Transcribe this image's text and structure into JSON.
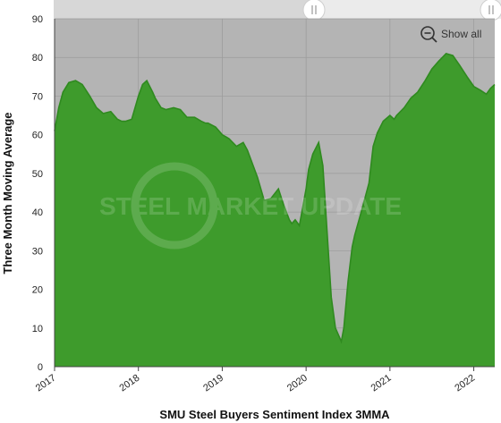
{
  "chart_data": {
    "type": "area",
    "title": "",
    "xlabel": "SMU Steel Buyers Sentiment Index 3MMA",
    "ylabel": "Three Month Moving Average",
    "xlim": [
      2017.0,
      2022.25
    ],
    "ylim": [
      0,
      90
    ],
    "x_ticks": [
      2017,
      2018,
      2019,
      2020,
      2021,
      2022
    ],
    "x_tick_labels": [
      "2017",
      "2018",
      "2019",
      "2020",
      "2021",
      "2022"
    ],
    "y_ticks": [
      0,
      10,
      20,
      30,
      40,
      50,
      60,
      70,
      80,
      90
    ],
    "y_tick_labels": [
      "0",
      "10",
      "20",
      "30",
      "40",
      "50",
      "60",
      "70",
      "80",
      "90"
    ],
    "grid": true,
    "fill_color": "#3e9b2c",
    "line_color": "#2f8a1f",
    "plot_background": "#b4b4b4",
    "series": [
      {
        "x": [
          2017.0,
          2017.05,
          2017.1,
          2017.17,
          2017.25,
          2017.33,
          2017.42,
          2017.5,
          2017.58,
          2017.67,
          2017.75,
          2017.8,
          2017.85,
          2017.92,
          2018.0,
          2018.05,
          2018.1,
          2018.17,
          2018.2,
          2018.27,
          2018.33,
          2018.42,
          2018.5,
          2018.58,
          2018.67,
          2018.75,
          2018.8,
          2018.83,
          2018.92,
          2019.0,
          2019.08,
          2019.17,
          2019.25,
          2019.3,
          2019.42,
          2019.5,
          2019.58,
          2019.67,
          2019.73,
          2019.8,
          2019.83,
          2019.87,
          2019.92,
          2020.0,
          2020.03,
          2020.08,
          2020.15,
          2020.2,
          2020.25,
          2020.3,
          2020.35,
          2020.42,
          2020.45,
          2020.5,
          2020.55,
          2020.58,
          2020.67,
          2020.75,
          2020.8,
          2020.85,
          2020.92,
          2021.0,
          2021.05,
          2021.08,
          2021.17,
          2021.25,
          2021.33,
          2021.42,
          2021.5,
          2021.58,
          2021.67,
          2021.75,
          2021.83,
          2021.92,
          2022.0,
          2022.08,
          2022.15,
          2022.2,
          2022.25
        ],
        "y": [
          61,
          67,
          71,
          73.5,
          74,
          73,
          70,
          67,
          65.5,
          66,
          64,
          63.5,
          63.5,
          64,
          70,
          73,
          74,
          71,
          69.5,
          67,
          66.5,
          67,
          66.5,
          64.5,
          64.5,
          63.5,
          63,
          63,
          62,
          60,
          59,
          57,
          58,
          56,
          49,
          43,
          43.5,
          46,
          42,
          38,
          37,
          38,
          36.5,
          46,
          51,
          55,
          58,
          52,
          35,
          18,
          10,
          6.5,
          10,
          22,
          31,
          34,
          41,
          47.5,
          57,
          60.5,
          63.5,
          65,
          64,
          65,
          67,
          69.5,
          71,
          74,
          77,
          79,
          81,
          80.5,
          78,
          75,
          72.5,
          71.5,
          70.5,
          72,
          73
        ]
      }
    ],
    "watermark": "STEEL MARKET UPDATE",
    "zoom_button_label": "Show all"
  }
}
